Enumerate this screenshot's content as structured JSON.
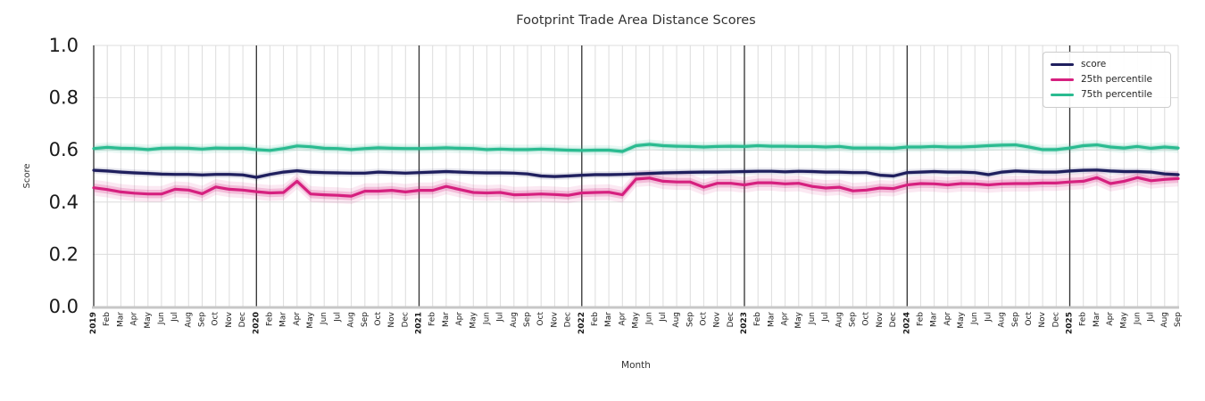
{
  "chart_data": {
    "type": "line",
    "title": "Footprint Trade Area Distance Scores",
    "xlabel": "Month",
    "ylabel": "Score",
    "ylim": [
      0.0,
      1.0
    ],
    "ytick_labels": [
      "0.0",
      "0.2",
      "0.4",
      "0.6",
      "0.8",
      "1.0"
    ],
    "ytick_values": [
      0.0,
      0.2,
      0.4,
      0.6,
      0.8,
      1.0
    ],
    "grid": true,
    "legend_position": "upper right",
    "x_labels": [
      "2019",
      "Feb",
      "Mar",
      "Apr",
      "May",
      "Jun",
      "Jul",
      "Aug",
      "Sep",
      "Oct",
      "Nov",
      "Dec",
      "2020",
      "Feb",
      "Mar",
      "Apr",
      "May",
      "Jun",
      "Jul",
      "Aug",
      "Sep",
      "Oct",
      "Nov",
      "Dec",
      "2021",
      "Feb",
      "Mar",
      "Apr",
      "May",
      "Jun",
      "Jul",
      "Aug",
      "Sep",
      "Oct",
      "Nov",
      "Dec",
      "2022",
      "Feb",
      "Mar",
      "Apr",
      "May",
      "Jun",
      "Jul",
      "Aug",
      "Sep",
      "Oct",
      "Nov",
      "Dec",
      "2023",
      "Feb",
      "Mar",
      "Apr",
      "May",
      "Jun",
      "Jul",
      "Aug",
      "Sep",
      "Oct",
      "Nov",
      "Dec",
      "2024",
      "Feb",
      "Mar",
      "Apr",
      "May",
      "Jun",
      "Jul",
      "Aug",
      "Sep",
      "Oct",
      "Nov",
      "Dec",
      "2025",
      "Feb",
      "Mar",
      "Apr",
      "May",
      "Jun",
      "Jul",
      "Aug",
      "Sep"
    ],
    "series": [
      {
        "name": "score",
        "color": "#1f1f5e",
        "band_halfwidth": 0.007,
        "values": [
          0.522,
          0.519,
          0.515,
          0.512,
          0.51,
          0.507,
          0.506,
          0.506,
          0.504,
          0.506,
          0.506,
          0.504,
          0.495,
          0.506,
          0.515,
          0.52,
          0.515,
          0.513,
          0.512,
          0.511,
          0.511,
          0.515,
          0.513,
          0.511,
          0.513,
          0.515,
          0.517,
          0.515,
          0.513,
          0.512,
          0.512,
          0.511,
          0.508,
          0.5,
          0.498,
          0.5,
          0.503,
          0.505,
          0.505,
          0.506,
          0.508,
          0.51,
          0.512,
          0.513,
          0.514,
          0.515,
          0.515,
          0.516,
          0.517,
          0.518,
          0.518,
          0.516,
          0.518,
          0.517,
          0.515,
          0.515,
          0.513,
          0.513,
          0.503,
          0.5,
          0.513,
          0.515,
          0.517,
          0.515,
          0.515,
          0.513,
          0.505,
          0.515,
          0.519,
          0.517,
          0.515,
          0.515,
          0.519,
          0.522,
          0.523,
          0.519,
          0.517,
          0.517,
          0.515,
          0.508,
          0.505
        ]
      },
      {
        "name": "25th percentile",
        "color": "#d6207f",
        "band_halfwidth": 0.016,
        "values": [
          0.455,
          0.448,
          0.439,
          0.434,
          0.431,
          0.431,
          0.449,
          0.446,
          0.432,
          0.458,
          0.449,
          0.446,
          0.44,
          0.435,
          0.437,
          0.48,
          0.431,
          0.428,
          0.426,
          0.423,
          0.442,
          0.442,
          0.445,
          0.439,
          0.445,
          0.445,
          0.46,
          0.448,
          0.437,
          0.435,
          0.437,
          0.428,
          0.429,
          0.431,
          0.429,
          0.426,
          0.435,
          0.437,
          0.438,
          0.428,
          0.488,
          0.492,
          0.48,
          0.477,
          0.477,
          0.457,
          0.472,
          0.472,
          0.466,
          0.474,
          0.474,
          0.47,
          0.472,
          0.46,
          0.454,
          0.457,
          0.443,
          0.446,
          0.454,
          0.452,
          0.466,
          0.471,
          0.47,
          0.466,
          0.471,
          0.47,
          0.466,
          0.47,
          0.471,
          0.471,
          0.473,
          0.473,
          0.477,
          0.48,
          0.494,
          0.471,
          0.48,
          0.494,
          0.482,
          0.487,
          0.49
        ]
      },
      {
        "name": "75th percentile",
        "color": "#2abb90",
        "band_halfwidth": 0.01,
        "values": [
          0.605,
          0.61,
          0.606,
          0.605,
          0.601,
          0.606,
          0.607,
          0.606,
          0.603,
          0.607,
          0.606,
          0.606,
          0.601,
          0.598,
          0.605,
          0.615,
          0.612,
          0.606,
          0.605,
          0.601,
          0.605,
          0.608,
          0.606,
          0.605,
          0.605,
          0.606,
          0.608,
          0.606,
          0.605,
          0.601,
          0.603,
          0.601,
          0.601,
          0.603,
          0.601,
          0.599,
          0.598,
          0.599,
          0.599,
          0.594,
          0.616,
          0.621,
          0.616,
          0.614,
          0.613,
          0.611,
          0.613,
          0.614,
          0.613,
          0.616,
          0.614,
          0.614,
          0.613,
          0.613,
          0.611,
          0.613,
          0.607,
          0.607,
          0.607,
          0.606,
          0.611,
          0.611,
          0.613,
          0.611,
          0.611,
          0.613,
          0.616,
          0.618,
          0.619,
          0.611,
          0.601,
          0.601,
          0.607,
          0.616,
          0.619,
          0.611,
          0.607,
          0.613,
          0.606,
          0.611,
          0.607
        ]
      }
    ]
  },
  "style_colors": {
    "grid_light": "#dcdcdc",
    "year_line": "#2f2f2f",
    "bottom_spine": "#c7c7c7",
    "tick_text": "#1a1a1a",
    "label_text": "#333333"
  }
}
